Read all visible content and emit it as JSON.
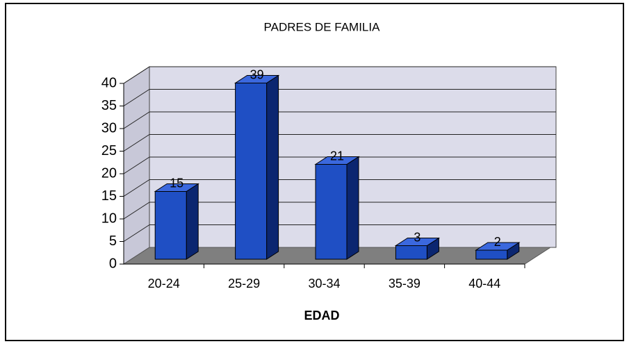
{
  "chart_data": {
    "type": "bar3d",
    "title": "PADRES DE FAMILIA",
    "x_label": "EDAD",
    "categories": [
      "20-24",
      "25-29",
      "30-34",
      "35-39",
      "40-44"
    ],
    "values": [
      15,
      39,
      21,
      3,
      2
    ],
    "color": "#1f4fc4",
    "ylim": [
      0,
      40
    ],
    "yticks": [
      0,
      5,
      10,
      15,
      20,
      25,
      30,
      35,
      40
    ],
    "grid": true
  }
}
